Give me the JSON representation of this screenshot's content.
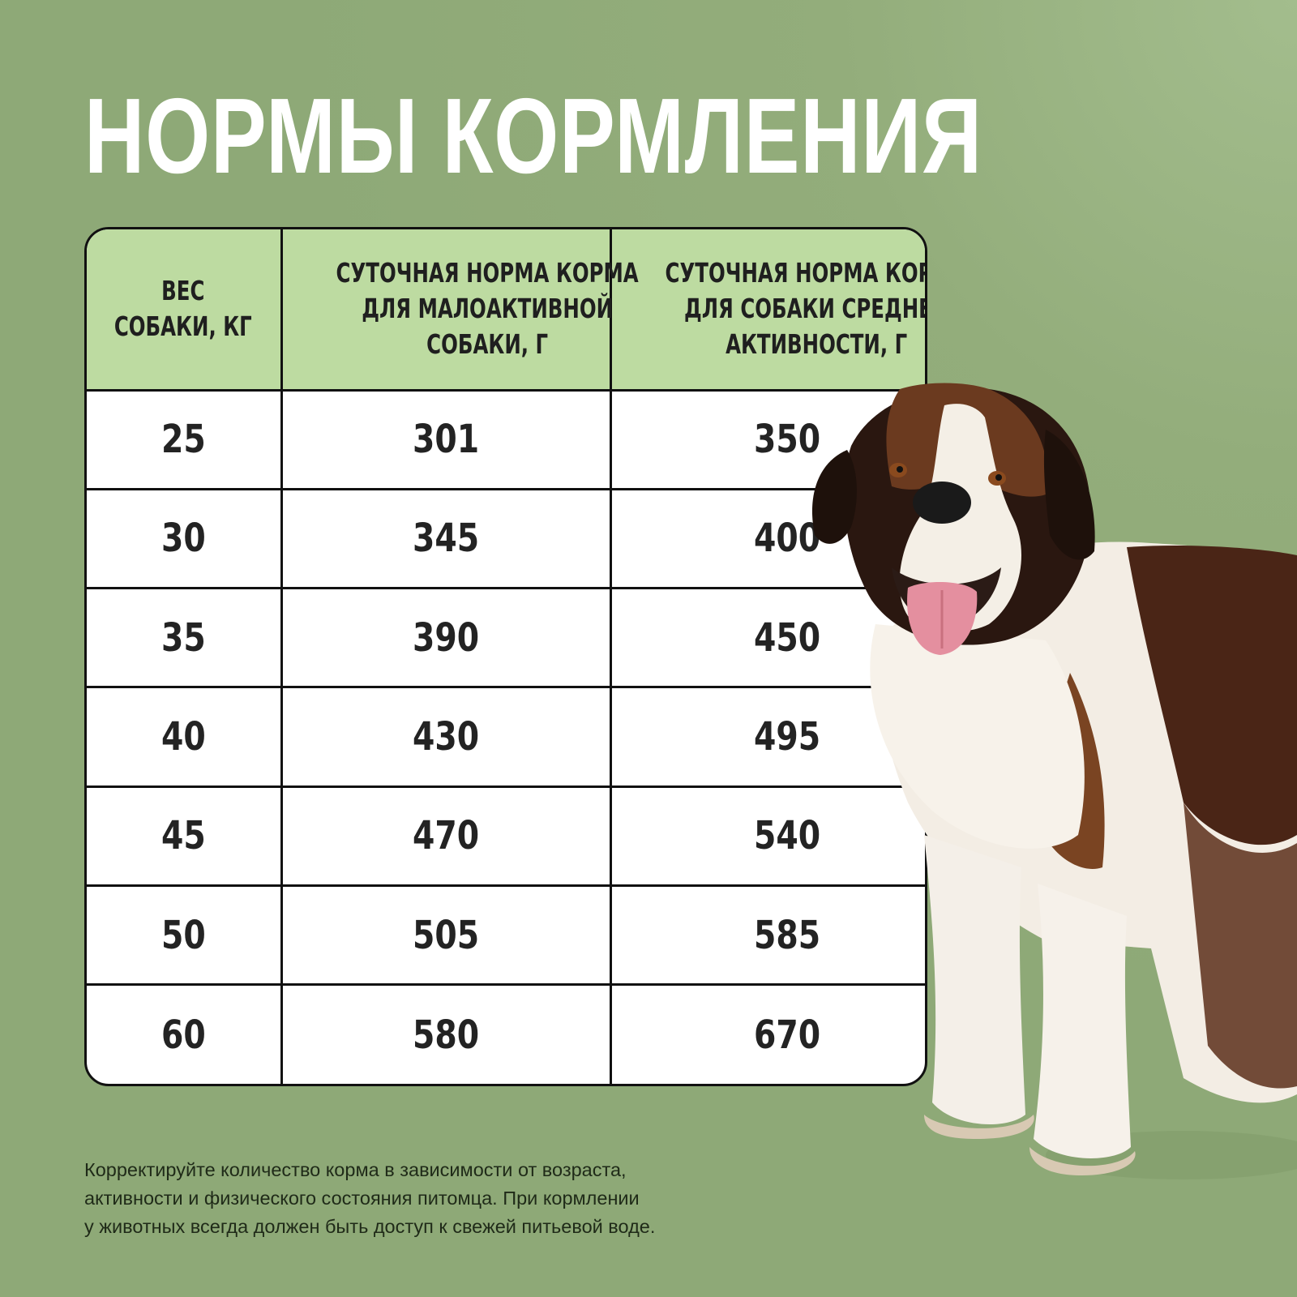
{
  "title": "НОРМЫ КОРМЛЕНИЯ",
  "table": {
    "headers": [
      [
        "ВЕС",
        "СОБАКИ, КГ"
      ],
      [
        "СУТОЧНАЯ НОРМА КОРМА",
        "ДЛЯ МАЛОАКТИВНОЙ",
        "СОБАКИ, Г"
      ],
      [
        "СУТОЧНАЯ НОРМА КОРМА",
        "ДЛЯ СОБАКИ СРЕДНЕЙ",
        "АКТИВНОСТИ, Г"
      ]
    ],
    "rows": [
      [
        "25",
        "301",
        "350"
      ],
      [
        "30",
        "345",
        "400"
      ],
      [
        "35",
        "390",
        "450"
      ],
      [
        "40",
        "430",
        "495"
      ],
      [
        "45",
        "470",
        "540"
      ],
      [
        "50",
        "505",
        "585"
      ],
      [
        "60",
        "580",
        "670"
      ]
    ]
  },
  "note": [
    "Корректируйте количество корма в зависимости от возраста,",
    "активности и физического состояния питомца. При кормлении",
    "у животных всегда должен быть доступ к свежей питьевой воде."
  ],
  "image": {
    "icon": "st-bernard-dog-photo"
  },
  "colors": {
    "background": "#8ea977",
    "header_fill": "#bddba1",
    "border": "#111111",
    "title": "#ffffff"
  }
}
